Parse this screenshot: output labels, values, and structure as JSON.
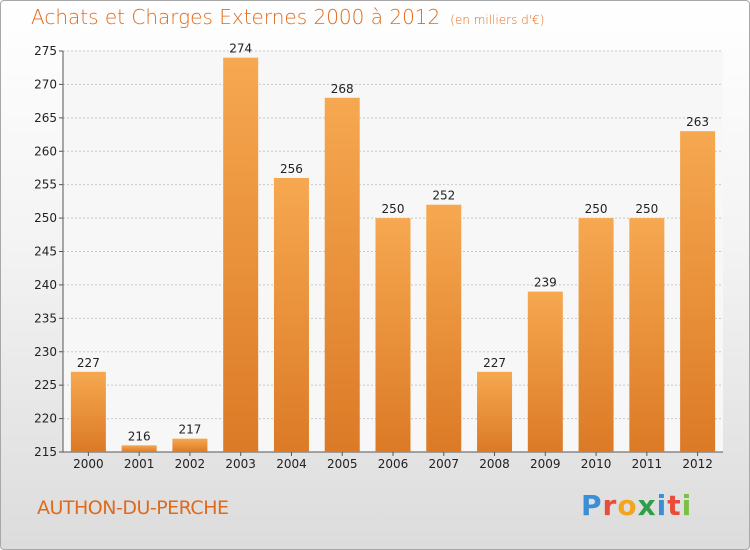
{
  "title": "Achats et Charges Externes 2000 à 2012",
  "unit": "(en milliers d'€)",
  "location": "AUTHON-DU-PERCHE",
  "logo": "Proxiti",
  "colors": {
    "title": "#e06a1c",
    "bar_light": "#f6a850",
    "bar_dark": "#dc7a26",
    "grid": "#c8c8c8"
  },
  "chart_data": {
    "type": "bar",
    "title": "Achats et Charges Externes 2000 à 2012",
    "subtitle": "(en milliers d'€)",
    "xlabel": "",
    "ylabel": "",
    "categories": [
      "2000",
      "2001",
      "2002",
      "2003",
      "2004",
      "2005",
      "2006",
      "2007",
      "2008",
      "2009",
      "2010",
      "2011",
      "2012"
    ],
    "values": [
      227,
      216,
      217,
      274,
      256,
      268,
      250,
      252,
      227,
      239,
      250,
      250,
      263
    ],
    "ylim": [
      215,
      275
    ],
    "yticks": [
      215,
      220,
      225,
      230,
      235,
      240,
      245,
      250,
      255,
      260,
      265,
      270,
      275
    ],
    "grid": true,
    "data_labels": true
  }
}
